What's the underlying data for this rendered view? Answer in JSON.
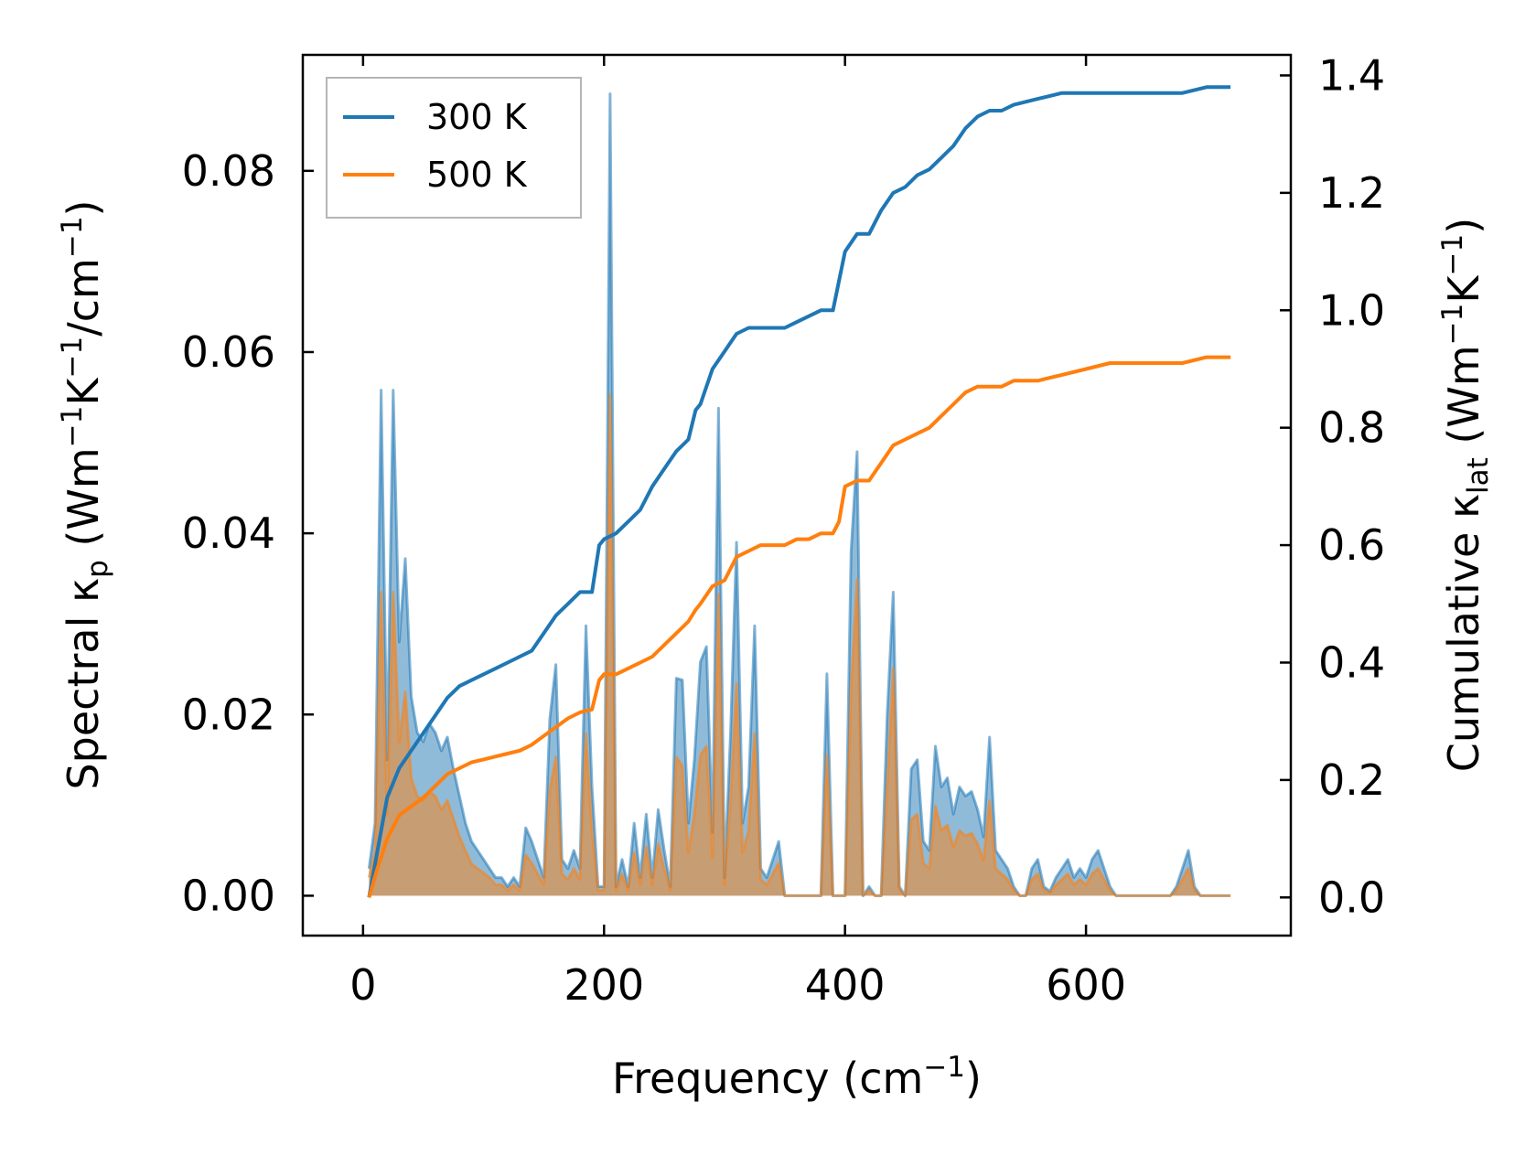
{
  "chart_data": {
    "type": "line",
    "subtype": "spectral + cumulative thermal conductivity (dual y-axis)",
    "xlabel": "Frequency (cm",
    "xlabel_sup": "−1",
    "xlabel_tail": ")",
    "xlim": [
      -50,
      770
    ],
    "x_ticks": [
      0,
      200,
      400,
      600
    ],
    "x_tick_labels": [
      "0",
      "200",
      "400",
      "600"
    ],
    "left_axis": {
      "label_parts": [
        "Spectral κ",
        "p",
        " (Wm",
        "−1",
        "K",
        "−1",
        "/cm",
        "−1",
        ")"
      ],
      "ylim": [
        -0.0044,
        0.0928
      ],
      "ticks": [
        0.0,
        0.02,
        0.04,
        0.06,
        0.08
      ],
      "tick_labels": [
        "0.00",
        "0.02",
        "0.04",
        "0.06",
        "0.08"
      ]
    },
    "right_axis": {
      "label_parts": [
        "Cumulative κ",
        "lat",
        " (Wm",
        "−1",
        "K",
        "−1",
        ")"
      ],
      "ylim": [
        -0.065,
        1.435
      ],
      "ticks": [
        0.0,
        0.2,
        0.4,
        0.6,
        0.8,
        1.0,
        1.2,
        1.4
      ],
      "tick_labels": [
        "0.0",
        "0.2",
        "0.4",
        "0.6",
        "0.8",
        "1.0",
        "1.2",
        "1.4"
      ]
    },
    "legend": {
      "position": "top-left",
      "entries": [
        "300 K",
        "500 K"
      ]
    },
    "colors": {
      "s300": "#1f77b4",
      "s500": "#ff7f0e"
    },
    "spectral_x": [
      5,
      10,
      15,
      20,
      25,
      30,
      35,
      40,
      45,
      50,
      55,
      60,
      65,
      70,
      75,
      80,
      85,
      90,
      95,
      100,
      105,
      110,
      115,
      120,
      125,
      130,
      135,
      140,
      145,
      150,
      155,
      160,
      165,
      170,
      175,
      180,
      185,
      190,
      195,
      200,
      205,
      210,
      215,
      220,
      225,
      230,
      235,
      240,
      245,
      250,
      255,
      260,
      265,
      270,
      275,
      280,
      285,
      290,
      295,
      300,
      305,
      310,
      315,
      320,
      325,
      330,
      335,
      340,
      345,
      350,
      355,
      360,
      365,
      370,
      375,
      380,
      385,
      390,
      395,
      400,
      405,
      410,
      415,
      420,
      425,
      430,
      435,
      440,
      445,
      450,
      455,
      460,
      465,
      470,
      475,
      480,
      485,
      490,
      495,
      500,
      505,
      510,
      515,
      520,
      525,
      530,
      535,
      540,
      545,
      550,
      555,
      560,
      565,
      570,
      575,
      580,
      585,
      590,
      595,
      600,
      605,
      610,
      615,
      620,
      625,
      630,
      635,
      640,
      645,
      650,
      655,
      660,
      665,
      670,
      675,
      680,
      685,
      690,
      695,
      700,
      705,
      710,
      715,
      720
    ],
    "series": [
      {
        "name": "300 K",
        "spectral": [
          0.003,
          0.008,
          0.0558,
          0.015,
          0.0558,
          0.028,
          0.0372,
          0.022,
          0.018,
          0.017,
          0.019,
          0.018,
          0.016,
          0.0175,
          0.014,
          0.011,
          0.008,
          0.006,
          0.005,
          0.004,
          0.003,
          0.002,
          0.002,
          0.001,
          0.002,
          0.001,
          0.0075,
          0.006,
          0.004,
          0.002,
          0.0195,
          0.0255,
          0.004,
          0.003,
          0.005,
          0.003,
          0.0298,
          0.012,
          0.001,
          0.001,
          0.0885,
          0.001,
          0.004,
          0.001,
          0.008,
          0.002,
          0.009,
          0.002,
          0.0095,
          0.005,
          0.001,
          0.024,
          0.0238,
          0.008,
          0.015,
          0.0258,
          0.0275,
          0.007,
          0.0538,
          0.002,
          0.018,
          0.039,
          0.008,
          0.012,
          0.0298,
          0.003,
          0.002,
          0.004,
          0.006,
          0.0,
          0.0,
          0.0,
          0.0,
          0.0,
          0.0,
          0.0,
          0.0245,
          0.0,
          0.0,
          0.0,
          0.038,
          0.049,
          0.0,
          0.001,
          0.0,
          0.0,
          0.02,
          0.0335,
          0.001,
          0.0,
          0.014,
          0.015,
          0.006,
          0.005,
          0.0165,
          0.012,
          0.013,
          0.009,
          0.012,
          0.011,
          0.0115,
          0.0095,
          0.0065,
          0.0175,
          0.005,
          0.004,
          0.003,
          0.001,
          0.0,
          0.0,
          0.003,
          0.004,
          0.001,
          0.0005,
          0.002,
          0.003,
          0.004,
          0.002,
          0.003,
          0.002,
          0.004,
          0.005,
          0.003,
          0.001,
          0.0,
          0.0,
          0.0,
          0.0,
          0.0,
          0.0,
          0.0,
          0.0,
          0.0,
          0.0,
          0.001,
          0.003,
          0.005,
          0.001,
          0.0,
          0.0,
          0.0,
          0.0,
          0.0,
          0.0
        ],
        "cumulative_x": [
          5,
          12,
          20,
          30,
          40,
          50,
          60,
          70,
          80,
          90,
          100,
          110,
          120,
          130,
          140,
          150,
          160,
          170,
          180,
          190,
          196,
          200,
          210,
          220,
          230,
          240,
          250,
          260,
          270,
          276,
          280,
          290,
          300,
          310,
          320,
          330,
          340,
          350,
          360,
          370,
          380,
          390,
          395,
          400,
          410,
          420,
          430,
          440,
          450,
          460,
          470,
          480,
          490,
          500,
          510,
          520,
          530,
          540,
          560,
          580,
          600,
          620,
          640,
          660,
          680,
          700,
          710,
          720
        ],
        "cumulative": [
          0.0,
          0.08,
          0.17,
          0.22,
          0.25,
          0.28,
          0.31,
          0.34,
          0.36,
          0.37,
          0.38,
          0.39,
          0.4,
          0.41,
          0.42,
          0.45,
          0.48,
          0.5,
          0.52,
          0.52,
          0.6,
          0.61,
          0.62,
          0.64,
          0.66,
          0.7,
          0.73,
          0.76,
          0.78,
          0.83,
          0.84,
          0.9,
          0.93,
          0.96,
          0.97,
          0.97,
          0.97,
          0.97,
          0.98,
          0.99,
          1.0,
          1.0,
          1.05,
          1.1,
          1.13,
          1.13,
          1.17,
          1.2,
          1.21,
          1.23,
          1.24,
          1.26,
          1.28,
          1.31,
          1.33,
          1.34,
          1.34,
          1.35,
          1.36,
          1.37,
          1.37,
          1.37,
          1.37,
          1.37,
          1.37,
          1.38,
          1.38,
          1.38
        ]
      },
      {
        "name": "500 K",
        "spectral": [
          0.002,
          0.005,
          0.0335,
          0.009,
          0.0335,
          0.017,
          0.0225,
          0.013,
          0.011,
          0.0105,
          0.0115,
          0.011,
          0.0095,
          0.0105,
          0.0085,
          0.0065,
          0.005,
          0.0035,
          0.003,
          0.0025,
          0.002,
          0.0012,
          0.0012,
          0.0006,
          0.0012,
          0.0006,
          0.0045,
          0.0036,
          0.0024,
          0.0012,
          0.0117,
          0.0153,
          0.0024,
          0.0018,
          0.003,
          0.0018,
          0.0179,
          0.0072,
          0.0006,
          0.0006,
          0.0553,
          0.0006,
          0.0024,
          0.0006,
          0.0048,
          0.0012,
          0.0054,
          0.0012,
          0.0057,
          0.003,
          0.0006,
          0.0153,
          0.0143,
          0.0048,
          0.009,
          0.0155,
          0.0165,
          0.0042,
          0.0333,
          0.0012,
          0.0108,
          0.0234,
          0.0048,
          0.0072,
          0.0179,
          0.0018,
          0.0012,
          0.0024,
          0.0036,
          0.0,
          0.0,
          0.0,
          0.0,
          0.0,
          0.0,
          0.0,
          0.0155,
          0.0,
          0.0,
          0.0,
          0.0228,
          0.0349,
          0.0,
          0.0006,
          0.0,
          0.0,
          0.012,
          0.0251,
          0.0006,
          0.0,
          0.0084,
          0.009,
          0.0036,
          0.003,
          0.0099,
          0.0072,
          0.0078,
          0.0054,
          0.0072,
          0.0066,
          0.0069,
          0.0057,
          0.0039,
          0.0105,
          0.003,
          0.0024,
          0.0018,
          0.0006,
          0.0,
          0.0,
          0.0018,
          0.0024,
          0.0006,
          0.0003,
          0.0012,
          0.0018,
          0.0024,
          0.0012,
          0.0018,
          0.0012,
          0.0024,
          0.003,
          0.0018,
          0.0006,
          0.0,
          0.0,
          0.0,
          0.0,
          0.0,
          0.0,
          0.0,
          0.0,
          0.0,
          0.0,
          0.0006,
          0.0018,
          0.003,
          0.0006,
          0.0,
          0.0,
          0.0,
          0.0,
          0.0,
          0.0
        ],
        "cumulative_x": [
          5,
          12,
          20,
          30,
          40,
          50,
          60,
          70,
          80,
          90,
          100,
          110,
          120,
          130,
          140,
          150,
          160,
          170,
          180,
          190,
          196,
          200,
          210,
          220,
          230,
          240,
          250,
          260,
          270,
          276,
          280,
          290,
          300,
          310,
          320,
          330,
          340,
          350,
          360,
          370,
          380,
          390,
          395,
          400,
          410,
          420,
          430,
          440,
          450,
          460,
          470,
          480,
          490,
          500,
          510,
          520,
          530,
          540,
          560,
          580,
          600,
          620,
          640,
          660,
          680,
          700,
          710,
          720
        ],
        "cumulative": [
          0.0,
          0.05,
          0.1,
          0.14,
          0.155,
          0.17,
          0.19,
          0.21,
          0.22,
          0.23,
          0.235,
          0.24,
          0.245,
          0.25,
          0.26,
          0.275,
          0.29,
          0.305,
          0.315,
          0.32,
          0.37,
          0.38,
          0.38,
          0.39,
          0.4,
          0.41,
          0.43,
          0.45,
          0.47,
          0.49,
          0.5,
          0.53,
          0.54,
          0.58,
          0.59,
          0.6,
          0.6,
          0.6,
          0.61,
          0.61,
          0.62,
          0.62,
          0.64,
          0.7,
          0.71,
          0.71,
          0.74,
          0.77,
          0.78,
          0.79,
          0.8,
          0.82,
          0.84,
          0.86,
          0.87,
          0.87,
          0.87,
          0.88,
          0.88,
          0.89,
          0.9,
          0.91,
          0.91,
          0.91,
          0.91,
          0.92,
          0.92,
          0.92
        ]
      }
    ]
  }
}
